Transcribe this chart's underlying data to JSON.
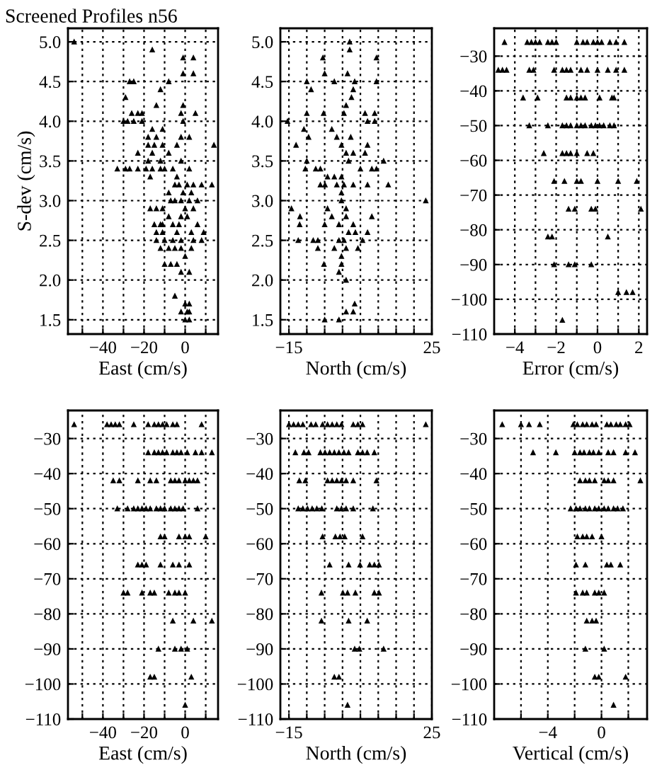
{
  "chart_data": [
    {
      "type": "scatter",
      "title": "Screened Profiles n56",
      "xlabel": "East (cm/s)",
      "ylabel": "S-dev (cm/s)",
      "marker": "triangle",
      "grid": true,
      "xlim": [
        -57,
        16
      ],
      "ylim": [
        1.32,
        5.17
      ],
      "xticks": [
        {
          "value": -50,
          "label": null
        },
        -40,
        {
          "value": -30,
          "label": null
        },
        -20,
        {
          "value": -10,
          "label": null
        },
        0,
        {
          "value": 10,
          "label": null
        }
      ],
      "yticks": [
        {
          "value": 1.5,
          "label": "1.5"
        },
        {
          "value": 2,
          "label": "2.0"
        },
        {
          "value": 2.5,
          "label": "2.5"
        },
        {
          "value": 3,
          "label": "3.0"
        },
        {
          "value": 3.5,
          "label": "3.5"
        },
        {
          "value": 4,
          "label": "4.0"
        },
        {
          "value": 4.5,
          "label": "4.5"
        },
        {
          "value": 5,
          "label": "5.0"
        }
      ],
      "series": [
        {
          "color": "#000000",
          "x": [
            -54,
            -16,
            -1,
            4,
            -1,
            4,
            -27,
            -25,
            -8,
            -12,
            -29,
            -14,
            -1,
            -26,
            -23,
            -21,
            -2,
            5,
            -30,
            -28,
            -25,
            -21,
            -1,
            -16,
            -11,
            -18,
            -14,
            -2,
            2,
            -18,
            -15,
            -11,
            -4,
            14,
            -23,
            -16,
            -8,
            -18,
            -12,
            -2,
            -33,
            -29,
            -27,
            -23,
            -19,
            -16,
            -12,
            -10,
            -6,
            2,
            -17,
            -4,
            -5,
            -3,
            1,
            4,
            8,
            13,
            -8,
            -1,
            3,
            -7,
            -5,
            -2,
            2,
            6,
            -17,
            -14,
            -11,
            0,
            4,
            -8,
            -2,
            1,
            -15,
            -12,
            -11,
            -6,
            -3,
            6,
            -14,
            -11,
            -4,
            3,
            9,
            -14,
            -10,
            -6,
            -2,
            4,
            8,
            -12,
            -8,
            -5,
            -2,
            3,
            0,
            -10,
            -7,
            -4,
            -2,
            2,
            -5,
            0,
            2,
            -2,
            1,
            2,
            0,
            2
          ],
          "values": [
            5.0,
            4.9,
            4.8,
            4.8,
            4.6,
            4.6,
            4.5,
            4.5,
            4.5,
            4.4,
            4.3,
            4.2,
            4.2,
            4.1,
            4.1,
            4.1,
            4.1,
            4.1,
            4.0,
            4.0,
            4.0,
            4.0,
            4.0,
            3.9,
            3.9,
            3.8,
            3.8,
            3.8,
            3.8,
            3.7,
            3.7,
            3.7,
            3.7,
            3.7,
            3.6,
            3.6,
            3.6,
            3.5,
            3.5,
            3.5,
            3.4,
            3.4,
            3.4,
            3.4,
            3.4,
            3.4,
            3.4,
            3.4,
            3.4,
            3.4,
            3.3,
            3.3,
            3.2,
            3.2,
            3.2,
            3.2,
            3.2,
            3.2,
            3.1,
            3.1,
            3.1,
            3.0,
            3.0,
            3.0,
            3.0,
            3.0,
            2.9,
            2.9,
            2.9,
            2.9,
            2.9,
            2.8,
            2.8,
            2.8,
            2.7,
            2.7,
            2.7,
            2.7,
            2.7,
            2.7,
            2.6,
            2.6,
            2.6,
            2.6,
            2.6,
            2.5,
            2.5,
            2.5,
            2.5,
            2.5,
            2.5,
            2.4,
            2.4,
            2.4,
            2.4,
            2.4,
            2.3,
            2.2,
            2.2,
            2.2,
            2.1,
            2.1,
            1.8,
            1.7,
            1.7,
            1.6,
            1.6,
            1.6,
            1.5,
            1.5
          ]
        }
      ]
    },
    {
      "type": "scatter",
      "xlabel": "North (cm/s)",
      "marker": "triangle",
      "grid": true,
      "xlim": [
        -17.4,
        25
      ],
      "ylim": [
        1.32,
        5.17
      ],
      "xticks": [
        -15,
        {
          "value": -10,
          "label": null
        },
        {
          "value": -5,
          "label": null
        },
        {
          "value": 0,
          "label": null
        },
        {
          "value": 5,
          "label": null
        },
        {
          "value": 10,
          "label": null
        },
        {
          "value": 15,
          "label": null
        },
        {
          "value": 20,
          "label": null
        },
        25
      ],
      "yticks": [
        {
          "value": 1.5,
          "label": "1.5"
        },
        {
          "value": 2,
          "label": "2.0"
        },
        {
          "value": 2.5,
          "label": "2.5"
        },
        {
          "value": 3,
          "label": "3.0"
        },
        {
          "value": 3.5,
          "label": "3.5"
        },
        {
          "value": 4,
          "label": "4.0"
        },
        {
          "value": 4.5,
          "label": "4.5"
        },
        {
          "value": 5,
          "label": "5.0"
        }
      ],
      "series": [
        {
          "color": "#000000",
          "x": [
            2,
            2,
            -5.5,
            9.5,
            -5,
            1.4,
            -10,
            -2.3,
            3.4,
            9.5,
            -8.8,
            3,
            2.5,
            1,
            -10,
            -5.3,
            0.4,
            6.3,
            9,
            -15.4,
            7,
            9,
            -10.8,
            -3,
            -9.5,
            -1.6,
            2.3,
            -13,
            -0.3,
            7,
            1,
            3,
            6.3,
            -10,
            1.7,
            11.5,
            -10.4,
            -7.5,
            -6.2,
            5,
            8.2,
            9.5,
            -4.2,
            -2.3,
            -0.3,
            -6.2,
            -4.9,
            -1.6,
            0.4,
            3,
            7,
            12.8,
            -0.3,
            23.3,
            -0.3,
            -14.3,
            -4.2,
            1,
            -11.9,
            -3,
            1,
            8.2,
            -12,
            -5,
            -1,
            3,
            1.7,
            3.6,
            7,
            -12.4,
            -8.2,
            -6.9,
            -1,
            0.4,
            5.6,
            -6.9,
            -2.3,
            1,
            4.3,
            -0.3,
            -5.2,
            -0.3,
            -1,
            1,
            3.4,
            1,
            3,
            -5,
            -1
          ],
          "values": [
            5.0,
            4.9,
            4.8,
            4.8,
            4.6,
            4.6,
            4.5,
            4.5,
            4.5,
            4.5,
            4.4,
            4.4,
            4.3,
            4.2,
            4.1,
            4.1,
            4.1,
            4.1,
            4.1,
            4.0,
            4.0,
            4.0,
            3.9,
            3.9,
            3.8,
            3.8,
            3.8,
            3.7,
            3.7,
            3.7,
            3.6,
            3.6,
            3.6,
            3.5,
            3.5,
            3.5,
            3.4,
            3.4,
            3.4,
            3.4,
            3.4,
            3.4,
            3.3,
            3.3,
            3.3,
            3.2,
            3.2,
            3.2,
            3.2,
            3.2,
            3.2,
            3.2,
            3.1,
            3.0,
            3.0,
            2.9,
            2.9,
            2.9,
            2.8,
            2.8,
            2.8,
            2.8,
            2.7,
            2.7,
            2.7,
            2.7,
            2.6,
            2.6,
            2.6,
            2.5,
            2.5,
            2.5,
            2.5,
            2.5,
            2.5,
            2.4,
            2.4,
            2.4,
            2.4,
            2.3,
            2.2,
            2.2,
            2.1,
            2.0,
            1.7,
            1.6,
            1.6,
            1.5,
            1.5
          ]
        }
      ]
    },
    {
      "type": "scatter",
      "xlabel": "Error (cm/s)",
      "marker": "triangle",
      "grid": true,
      "xlim": [
        -5,
        2.4
      ],
      "ylim": [
        -110,
        -22
      ],
      "xticks": [
        -4,
        {
          "value": -3,
          "label": null
        },
        -2,
        {
          "value": -1,
          "label": null
        },
        0,
        {
          "value": 1,
          "label": null
        },
        2
      ],
      "yticks": [
        -110,
        -100,
        -90,
        -80,
        -70,
        -60,
        -50,
        -40,
        -30
      ],
      "series": [
        {
          "color": "#000000",
          "x": [
            -4.5,
            -3.4,
            -3.2,
            -3.0,
            -2.8,
            -2.4,
            -2.2,
            -2.0,
            -1.0,
            -0.7,
            -0.5,
            -0.2,
            0,
            0.2,
            0.6,
            0.9,
            1.3,
            -4.8,
            -4.6,
            -4.4,
            -3.3,
            -3.1,
            -2.1,
            -1.7,
            -1.5,
            -1.3,
            -0.8,
            -0.5,
            0,
            0.5,
            0.9,
            1.3,
            -3.6,
            -2.9,
            -1.5,
            -1.3,
            -1.0,
            -0.8,
            -0.6,
            0.1,
            0.7,
            0.8,
            -3.3,
            -2.4,
            -1.7,
            -1.5,
            -1.3,
            -1.0,
            -0.8,
            -0.6,
            -0.3,
            -0.1,
            0.1,
            0.3,
            0.6,
            0.8,
            -2.6,
            -1.7,
            -1.5,
            -1.3,
            -1.0,
            -0.5,
            -0.2,
            -2.1,
            -1.6,
            -1.0,
            -0.8,
            0,
            1.0,
            1.9,
            -1.4,
            -1.1,
            -0.3,
            -0.1,
            2.1,
            -2.4,
            -2.2,
            0.5,
            -2.1,
            -1.4,
            -1.1,
            -0.3,
            1.0,
            1.4,
            1.7,
            -1.7
          ],
          "values": [
            -26,
            -26,
            -26,
            -26,
            -26,
            -26,
            -26,
            -26,
            -26,
            -26,
            -26,
            -26,
            -26,
            -26,
            -26,
            -26,
            -26,
            -34,
            -34,
            -34,
            -34,
            -34,
            -34,
            -34,
            -34,
            -34,
            -34,
            -34,
            -34,
            -34,
            -34,
            -34,
            -42,
            -42,
            -42,
            -42,
            -42,
            -42,
            -42,
            -42,
            -42,
            -42,
            -50,
            -50,
            -50,
            -50,
            -50,
            -50,
            -50,
            -50,
            -50,
            -50,
            -50,
            -50,
            -50,
            -50,
            -58,
            -58,
            -58,
            -58,
            -58,
            -58,
            -58,
            -66,
            -66,
            -66,
            -66,
            -66,
            -66,
            -66,
            -74,
            -74,
            -74,
            -74,
            -74,
            -82,
            -82,
            -82,
            -90,
            -90,
            -90,
            -90,
            -98,
            -98,
            -98,
            -106
          ]
        }
      ]
    },
    {
      "type": "scatter",
      "xlabel": "East (cm/s)",
      "marker": "triangle",
      "grid": true,
      "xlim": [
        -57,
        16
      ],
      "ylim": [
        -110,
        -22
      ],
      "xticks": [
        {
          "value": -50,
          "label": null
        },
        -40,
        {
          "value": -30,
          "label": null
        },
        -20,
        {
          "value": -10,
          "label": null
        },
        0,
        {
          "value": 10,
          "label": null
        }
      ],
      "yticks": [
        -110,
        -100,
        -90,
        -80,
        -70,
        -60,
        -50,
        -40,
        -30
      ],
      "series": [
        {
          "color": "#000000",
          "x": [
            -54,
            -38,
            -36,
            -34,
            -32,
            -25,
            -18,
            -15,
            -13,
            -11,
            -9,
            -6,
            -4,
            8,
            -18,
            -15,
            -13,
            -11,
            -9,
            -6,
            -4,
            -2,
            1,
            5,
            8,
            13,
            -35,
            -32,
            -23,
            -17,
            -14,
            -7,
            -5,
            -3,
            0,
            2,
            4,
            6,
            -33,
            -28,
            -25,
            -23,
            -21,
            -19,
            -17,
            -14,
            -12,
            -10,
            -7,
            -5,
            -3,
            -1,
            6,
            -12,
            -10,
            -3,
            0,
            2,
            10,
            -23,
            -21,
            -19,
            -12,
            -6,
            -3,
            2,
            -30,
            -28,
            -21,
            -17,
            -15,
            -8,
            -5,
            -3,
            0,
            -6,
            4,
            13,
            -13,
            -5,
            -2,
            1,
            -17,
            -15,
            3,
            0
          ],
          "values": [
            -26,
            -26,
            -26,
            -26,
            -26,
            -26,
            -26,
            -26,
            -26,
            -26,
            -26,
            -26,
            -26,
            -26,
            -34,
            -34,
            -34,
            -34,
            -34,
            -34,
            -34,
            -34,
            -34,
            -34,
            -34,
            -34,
            -42,
            -42,
            -42,
            -42,
            -42,
            -42,
            -42,
            -42,
            -42,
            -42,
            -42,
            -42,
            -50,
            -50,
            -50,
            -50,
            -50,
            -50,
            -50,
            -50,
            -50,
            -50,
            -50,
            -50,
            -50,
            -50,
            -50,
            -58,
            -58,
            -58,
            -58,
            -58,
            -58,
            -66,
            -66,
            -66,
            -66,
            -66,
            -66,
            -66,
            -74,
            -74,
            -74,
            -74,
            -74,
            -74,
            -74,
            -74,
            -74,
            -82,
            -82,
            -82,
            -90,
            -90,
            -90,
            -90,
            -98,
            -98,
            -98,
            -106
          ]
        }
      ]
    },
    {
      "type": "scatter",
      "xlabel": "North (cm/s)",
      "marker": "triangle",
      "grid": true,
      "xlim": [
        -17.4,
        25
      ],
      "ylim": [
        -110,
        -22
      ],
      "xticks": [
        -15,
        {
          "value": -10,
          "label": null
        },
        {
          "value": -5,
          "label": null
        },
        {
          "value": 0,
          "label": null
        },
        {
          "value": 5,
          "label": null
        },
        {
          "value": 10,
          "label": null
        },
        {
          "value": 15,
          "label": null
        },
        {
          "value": 20,
          "label": null
        },
        25
      ],
      "yticks": [
        -110,
        -100,
        -90,
        -80,
        -70,
        -60,
        -50,
        -40,
        -30
      ],
      "series": [
        {
          "color": "#000000",
          "x": [
            -15,
            -13.7,
            -12.4,
            -11.1,
            -8.8,
            -7.5,
            -5.6,
            -4.2,
            -2.9,
            -1.6,
            -0.3,
            3,
            4.3,
            5.6,
            23.3,
            -13.2,
            -10.8,
            -9.5,
            -6.2,
            -4.9,
            -3.6,
            -2.3,
            -1,
            0.4,
            1.7,
            4.3,
            5.6,
            6.9,
            8.9,
            -12.1,
            -10.4,
            -4.2,
            -2.9,
            -1.6,
            -0.3,
            1,
            3,
            9.5,
            -12.4,
            -11.1,
            -9.8,
            -8.5,
            -7.2,
            -5.8,
            -1.6,
            -0.3,
            1,
            3,
            8.5,
            -5.6,
            -2,
            -0.7,
            0.6,
            5.6,
            -3.6,
            1.7,
            4.9,
            7.6,
            8.9,
            10.2,
            -5.9,
            0.1,
            1.4,
            3.6,
            8.9,
            10.2,
            -5.9,
            1.7,
            6.9,
            3.4,
            4.7,
            11.5,
            -2.3,
            -1,
            1.4
          ],
          "values": [
            -26,
            -26,
            -26,
            -26,
            -26,
            -26,
            -26,
            -26,
            -26,
            -26,
            -26,
            -26,
            -26,
            -26,
            -26,
            -34,
            -34,
            -34,
            -34,
            -34,
            -34,
            -34,
            -34,
            -34,
            -34,
            -34,
            -34,
            -34,
            -34,
            -42,
            -42,
            -42,
            -42,
            -42,
            -42,
            -42,
            -42,
            -42,
            -50,
            -50,
            -50,
            -50,
            -50,
            -50,
            -50,
            -50,
            -50,
            -50,
            -50,
            -58,
            -58,
            -58,
            -58,
            -58,
            -66,
            -66,
            -66,
            -66,
            -66,
            -66,
            -74,
            -74,
            -74,
            -74,
            -74,
            -74,
            -82,
            -82,
            -82,
            -90,
            -90,
            -90,
            -98,
            -98,
            -106
          ]
        }
      ]
    },
    {
      "type": "scatter",
      "xlabel": "Vertical (cm/s)",
      "marker": "triangle",
      "grid": true,
      "xlim": [
        -8,
        3.4
      ],
      "ylim": [
        -110,
        -22
      ],
      "xticks": [
        {
          "value": -6,
          "label": null
        },
        -4,
        {
          "value": -2,
          "label": null
        },
        0,
        {
          "value": 2,
          "label": null
        }
      ],
      "yticks": [
        -110,
        -100,
        -90,
        -80,
        -70,
        -60,
        -50,
        -40,
        -30
      ],
      "series": [
        {
          "color": "#000000",
          "x": [
            -7.4,
            -6,
            -5.4,
            -4.6,
            -2.1,
            -1.8,
            -1.4,
            -1.1,
            -0.7,
            -0.4,
            0.4,
            0.7,
            1.1,
            1.4,
            1.8,
            2.1,
            -5.1,
            -3.4,
            -2,
            -1.6,
            -1.3,
            -0.9,
            -0.6,
            -0.2,
            0.5,
            0.9,
            1.8,
            2.5,
            -1.6,
            -1.2,
            -0.9,
            -0.5,
            0.2,
            0.5,
            0.9,
            2.9,
            -2.3,
            -1.9,
            -1.6,
            -1.2,
            -0.9,
            -0.5,
            -0.2,
            0.2,
            0.5,
            0.9,
            1.2,
            1.6,
            -1.8,
            -1.4,
            -1.1,
            -0.7,
            0,
            -1.9,
            -1.2,
            0.4,
            0.7,
            1.4,
            -1.9,
            -1.4,
            -1.1,
            -0.5,
            -0.2,
            0.2,
            -1.1,
            -0.7,
            -0.4,
            -1.2,
            0.2,
            -0.5,
            -0.2,
            1.8,
            0.9
          ],
          "values": [
            -26,
            -26,
            -26,
            -26,
            -26,
            -26,
            -26,
            -26,
            -26,
            -26,
            -26,
            -26,
            -26,
            -26,
            -26,
            -26,
            -34,
            -34,
            -34,
            -34,
            -34,
            -34,
            -34,
            -34,
            -34,
            -34,
            -34,
            -34,
            -42,
            -42,
            -42,
            -42,
            -42,
            -42,
            -42,
            -42,
            -50,
            -50,
            -50,
            -50,
            -50,
            -50,
            -50,
            -50,
            -50,
            -50,
            -50,
            -50,
            -58,
            -58,
            -58,
            -58,
            -58,
            -66,
            -66,
            -66,
            -66,
            -66,
            -74,
            -74,
            -74,
            -74,
            -74,
            -74,
            -82,
            -82,
            -82,
            -90,
            -90,
            -98,
            -98,
            -98,
            -106
          ]
        }
      ]
    }
  ]
}
